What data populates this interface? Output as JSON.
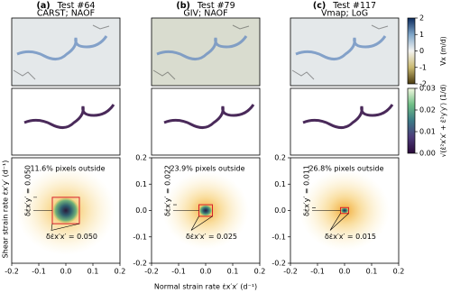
{
  "chart_data": [
    {
      "type": "density",
      "letter": "(a)",
      "title": "Test #64",
      "subtitle": "CARST; NAOF",
      "annotation": "11.6% pixels outside",
      "xlim": [
        -0.2,
        0.2
      ],
      "ylim": [
        -0.2,
        0.2
      ],
      "xticks": [
        -0.2,
        -0.1,
        {
          "value": 0,
          "label": "0.0"
        },
        0.1,
        0.2
      ],
      "ylabel": "Shear strain rate ε̇x′y′ (d⁻¹)",
      "delta_y": {
        "value": 0.05,
        "label": "δε̇x′y′ = 0.050"
      },
      "delta_x": {
        "value": 0.05,
        "label": "δε̇x′x′ = 0.050"
      }
    },
    {
      "type": "density",
      "letter": "(b)",
      "title": "Test #79",
      "subtitle": "GIV; NAOF",
      "annotation": "23.9% pixels outside",
      "xlim": [
        -0.2,
        0.2
      ],
      "ylim": [
        -0.2,
        0.2
      ],
      "xticks": [
        -0.2,
        -0.1,
        {
          "value": 0,
          "label": "0.0"
        },
        0.1,
        0.2
      ],
      "yticks": [
        -0.2,
        -0.1,
        {
          "value": 0,
          "label": "0.0"
        },
        0.1,
        0.2
      ],
      "xlabel": "Normal strain rate ε̇x′x′ (d⁻¹)",
      "delta_y": {
        "value": 0.022,
        "label": "δε̇x′y′ = 0.022"
      },
      "delta_x": {
        "value": 0.025,
        "label": "δε̇x′x′ = 0.025"
      }
    },
    {
      "type": "density",
      "letter": "(c)",
      "title": "Test #117",
      "subtitle": "Vmap; LoG",
      "annotation": "26.8% pixels outside",
      "xlim": [
        -0.2,
        0.2
      ],
      "ylim": [
        -0.2,
        0.2
      ],
      "xticks": [
        -0.2,
        -0.1,
        {
          "value": 0,
          "label": "0.0"
        },
        0.1,
        0.2
      ],
      "yticks": [
        -0.2,
        -0.1,
        {
          "value": 0,
          "label": "0.0"
        },
        0.1,
        0.2
      ],
      "delta_y": {
        "value": 0.011,
        "label": "δε̇x′y′ = 0.011"
      },
      "delta_x": {
        "value": 0.015,
        "label": "δε̇x′x′ = 0.015"
      }
    }
  ],
  "colorbars": [
    {
      "label": "Vx (m/d)",
      "lim": [
        -2,
        2
      ],
      "ticks": [
        2,
        1,
        0,
        -1,
        -2
      ],
      "colors": [
        "#4a3a10",
        "#c9b970",
        "#f4f4f2",
        "#7fa6c9",
        "#0c2a5c"
      ]
    },
    {
      "label": "√(ε̇²x′x′ + ε̇²y′y′) (1/d)",
      "lim": [
        0,
        0.03
      ],
      "ticks": [
        {
          "value": 0,
          "label": "0.00"
        },
        {
          "value": 0.01,
          "label": "0.01"
        },
        {
          "value": 0.02,
          "label": "0.02"
        },
        {
          "value": 0.03,
          "label": "0.03"
        }
      ],
      "colors": [
        "#2a0a3a",
        "#4d3b7a",
        "#3c7a87",
        "#6fbf86",
        "#f2f8df"
      ]
    }
  ]
}
